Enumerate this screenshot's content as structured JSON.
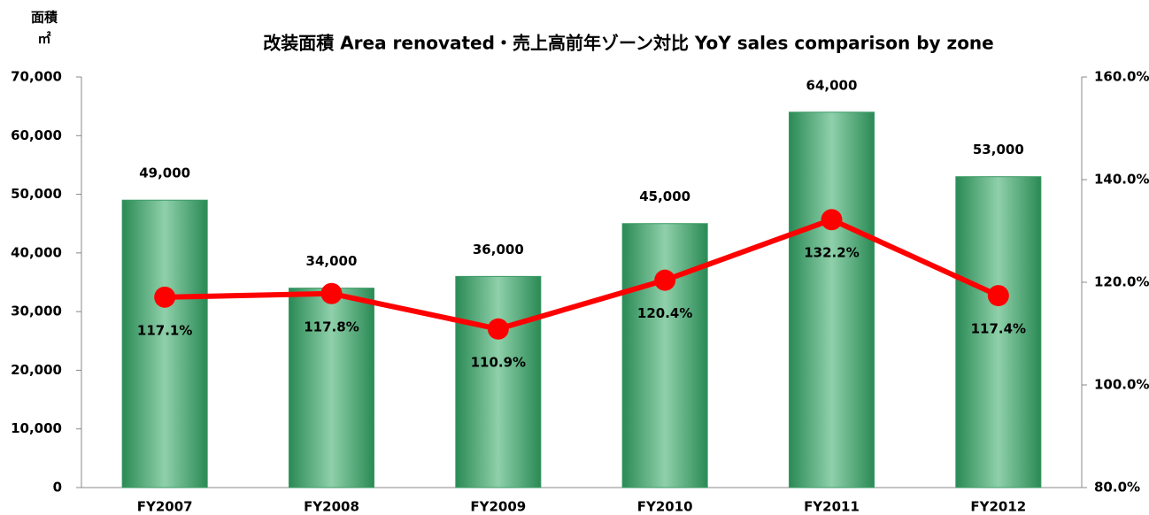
{
  "chart_data": {
    "type": "bar",
    "title": "改装面積 Area renovated・売上高前年ゾーン対比 YoY sales comparison by zone",
    "y_label": "面積",
    "y_unit": "㎡",
    "categories": [
      "FY2007",
      "FY2008",
      "FY2009",
      "FY2010",
      "FY2011",
      "FY2012"
    ],
    "series": [
      {
        "type": "bar",
        "color": "#3a9a64",
        "values": [
          49000,
          34000,
          36000,
          45000,
          64000,
          53000
        ],
        "value_labels": [
          "49,000",
          "34,000",
          "36,000",
          "45,000",
          "64,000",
          "53,000"
        ]
      },
      {
        "type": "line",
        "axis": "y2",
        "color": "#ff0000",
        "values": [
          117.1,
          117.8,
          110.9,
          120.4,
          132.2,
          117.4
        ],
        "value_labels": [
          "117.1%",
          "117.8%",
          "110.9%",
          "120.4%",
          "132.2%",
          "117.4%"
        ]
      }
    ],
    "ylim": [
      0,
      70000
    ],
    "yticks": [
      0,
      {
        "value": 10000,
        "label": "10,000"
      },
      {
        "value": 20000,
        "label": "20,000"
      },
      {
        "value": 30000,
        "label": "30,000"
      },
      {
        "value": 40000,
        "label": "40,000"
      },
      {
        "value": 50000,
        "label": "50,000"
      },
      {
        "value": 60000,
        "label": "60,000"
      },
      {
        "value": 70000,
        "label": "70,000"
      }
    ],
    "y2lim": [
      80,
      160
    ],
    "y2ticks": [
      {
        "value": 80,
        "label": "80.0%"
      },
      {
        "value": 100,
        "label": "100.0%"
      },
      {
        "value": 120,
        "label": "120.0%"
      },
      {
        "value": 140,
        "label": "140.0%"
      },
      {
        "value": 160,
        "label": "160.0%"
      }
    ],
    "grid": false
  }
}
